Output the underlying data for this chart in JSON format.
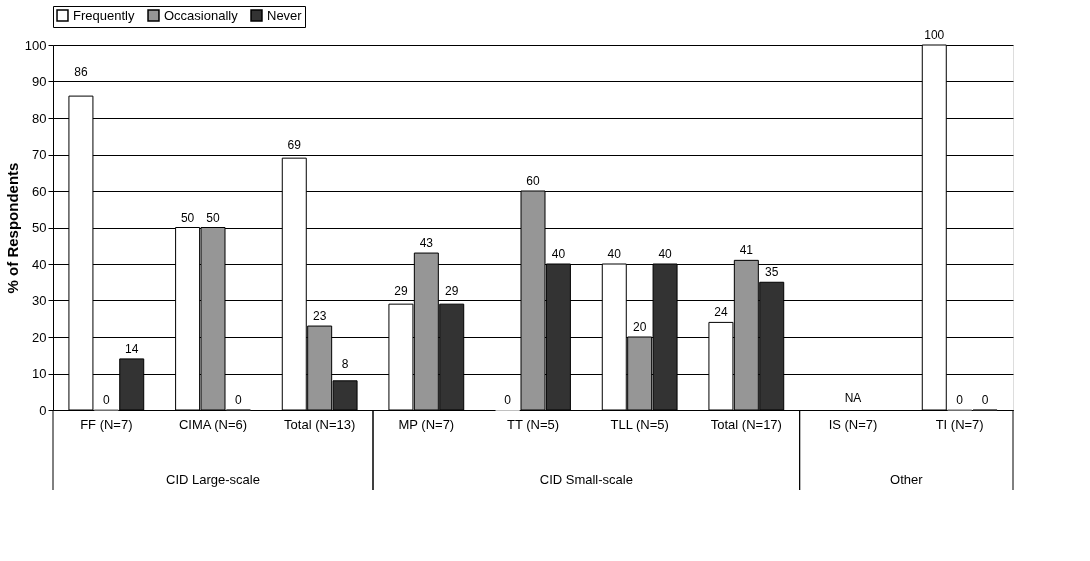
{
  "chart_data": {
    "type": "bar",
    "ylabel": "% of Respondents",
    "categories": [
      "FF (N=7)",
      "CIMA (N=6)",
      "Total (N=13)",
      "MP (N=7)",
      "TT (N=5)",
      "TLL (N=5)",
      "Total (N=17)",
      "IS (N=7)",
      "TI (N=7)"
    ],
    "series": [
      {
        "name": "Frequently",
        "color": "#ffffff",
        "values": [
          86,
          50,
          69,
          29,
          0,
          40,
          24,
          null,
          100
        ]
      },
      {
        "name": "Occasionally",
        "color": "#969696",
        "values": [
          0,
          50,
          23,
          43,
          60,
          20,
          41,
          null,
          0
        ]
      },
      {
        "name": "Never",
        "color": "#333333",
        "values": [
          14,
          0,
          8,
          29,
          40,
          40,
          35,
          null,
          0
        ]
      }
    ],
    "ylim": [
      0,
      100
    ],
    "yticks": [
      0,
      10,
      20,
      30,
      40,
      50,
      60,
      70,
      80,
      90,
      100
    ],
    "grid": "y",
    "legend": "top",
    "data_labels": true,
    "annotations": [
      "CID Large-scale",
      "CID Small-scale",
      "Other",
      "NA"
    ]
  }
}
